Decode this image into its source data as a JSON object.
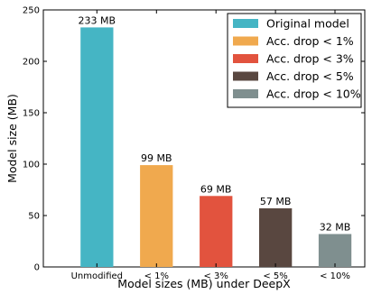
{
  "chart_data": {
    "type": "bar",
    "title": "",
    "xlabel": "Model sizes (MB) under DeepX",
    "ylabel": "Model size (MB)",
    "ylim": [
      0,
      250
    ],
    "yticks": [
      0,
      50,
      100,
      150,
      200,
      250
    ],
    "grid": false,
    "legend_position": "top-right",
    "categories": [
      "Unmodified",
      "< 1%",
      "< 3%",
      "< 5%",
      "< 10%"
    ],
    "values": [
      233,
      99,
      69,
      57,
      32
    ],
    "data_labels": [
      "233 MB",
      "99 MB",
      "69 MB",
      "57 MB",
      "32 MB"
    ],
    "legend": [
      "Original model",
      "Acc. drop < 1%",
      "Acc. drop < 3%",
      "Acc. drop < 5%",
      "Acc. drop < 10%"
    ],
    "colors": [
      "#45b5c4",
      "#f0a94e",
      "#e2533e",
      "#594740",
      "#7f8f8f"
    ]
  }
}
